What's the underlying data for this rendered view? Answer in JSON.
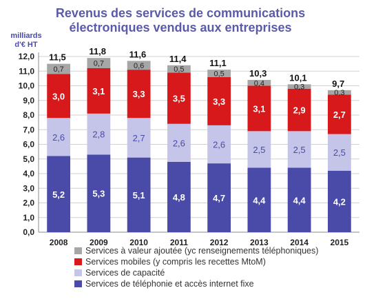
{
  "chart_data": {
    "type": "bar",
    "stacked": true,
    "title_lines": [
      "Revenus des services de communications",
      "électroniques vendus aux entreprises"
    ],
    "ylabel_lines": [
      "milliards",
      "d'€ HT"
    ],
    "xlabel": "",
    "ylim": [
      0,
      12
    ],
    "ytick_step": 1,
    "ytick_labels": [
      "0,0",
      "1,0",
      "2,0",
      "3,0",
      "4,0",
      "5,0",
      "6,0",
      "7,0",
      "8,0",
      "9,0",
      "10,0",
      "11,0",
      "12,0"
    ],
    "grid": true,
    "categories": [
      "2008",
      "2009",
      "2010",
      "2011",
      "2012",
      "2013",
      "2014",
      "2015"
    ],
    "totals": [
      11.5,
      11.8,
      11.6,
      11.4,
      11.1,
      10.3,
      10.1,
      9.7
    ],
    "total_labels": [
      "11,5",
      "11,8",
      "11,6",
      "11,4",
      "11,1",
      "10,3",
      "10,1",
      "9,7"
    ],
    "series": [
      {
        "name": "Services de téléphonie et accès internet fixe",
        "color": "#4a4aa8",
        "label_color": "#ffffff",
        "values": [
          5.2,
          5.3,
          5.1,
          4.8,
          4.7,
          4.4,
          4.4,
          4.2
        ],
        "labels": [
          "5,2",
          "5,3",
          "5,1",
          "4,8",
          "4,7",
          "4,4",
          "4,4",
          "4,2"
        ]
      },
      {
        "name": "Services de capacité",
        "color": "#c5c5ea",
        "label_color": "#4a4aa8",
        "values": [
          2.6,
          2.8,
          2.7,
          2.6,
          2.6,
          2.5,
          2.5,
          2.5
        ],
        "labels": [
          "2,6",
          "2,8",
          "2,7",
          "2,6",
          "2,6",
          "2,5",
          "2,5",
          "2,5"
        ]
      },
      {
        "name": "Services mobiles (y compris les recettes MtoM)",
        "color": "#d7191c",
        "label_color": "#ffffff",
        "values": [
          3.0,
          3.1,
          3.3,
          3.5,
          3.3,
          3.1,
          2.9,
          2.7
        ],
        "labels": [
          "3,0",
          "3,1",
          "3,3",
          "3,5",
          "3,3",
          "3,1",
          "2,9",
          "2,7"
        ]
      },
      {
        "name": "Services à valeur ajoutée (yc renseignements téléphoniques)",
        "color": "#a6a6a6",
        "label_color": "#222222",
        "values": [
          0.7,
          0.7,
          0.6,
          0.5,
          0.5,
          0.4,
          0.3,
          0.3
        ],
        "labels": [
          "0,7",
          "0,7",
          "0,6",
          "0,5",
          "0,5",
          "0,4",
          "0,3",
          "0,3"
        ]
      }
    ],
    "legend": {
      "placement": "bottom",
      "order": [
        3,
        2,
        1,
        0
      ]
    },
    "colors": {
      "title": "#5a5aa8",
      "axis_label": "#4a4aa8",
      "grid": "#d0d0d0",
      "axis": "#888888"
    }
  }
}
